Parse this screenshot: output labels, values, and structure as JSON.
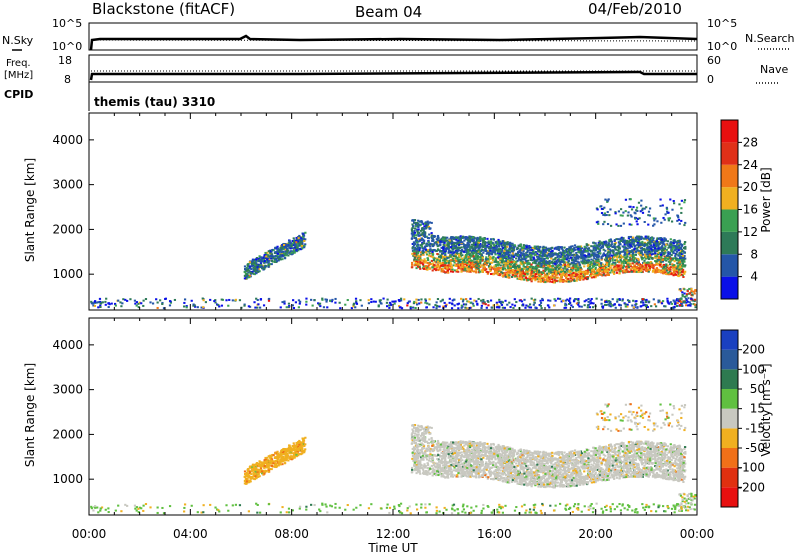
{
  "header": {
    "station": "Blackstone (fitACF)",
    "beam": "Beam 04",
    "date": "04/Feb/2010"
  },
  "panels": {
    "nsky": {
      "left_label": "N.Sky",
      "left_ticks": [
        "10^5",
        "10^0"
      ],
      "right_label": "N.Search",
      "right_ticks": [
        "10^5",
        "10^0"
      ]
    },
    "freq": {
      "left_label_line1": "Freq.",
      "left_label_line2": "[MHz]",
      "left_ticks": [
        "18",
        "8"
      ],
      "right_label": "Nave",
      "right_ticks": [
        "60",
        "0"
      ]
    },
    "cpid": {
      "label": "CPID",
      "text": "themis (tau) 3310"
    }
  },
  "colors": {
    "power": [
      "#0a10e8",
      "#2456a8",
      "#2e7a58",
      "#3aa052",
      "#f0b020",
      "#f07818",
      "#e03018",
      "#e81010"
    ],
    "velocity": [
      "#1a40c0",
      "#2a5a9a",
      "#2e7a50",
      "#60c040",
      "#c8c8c0",
      "#f0b020",
      "#f07018",
      "#e03010",
      "#e81010"
    ]
  },
  "chart_data": [
    {
      "type": "heatmap",
      "name": "power",
      "ylabel": "Slant Range [km]",
      "yticks": [
        "1000",
        "2000",
        "3000",
        "4000"
      ],
      "ylim": [
        200,
        4600
      ],
      "xlim": [
        0,
        24
      ],
      "colorbar_label": "Power [dB]",
      "colorbar_ticks": [
        "4",
        "8",
        "12",
        "16",
        "20",
        "24",
        "28"
      ]
    },
    {
      "type": "heatmap",
      "name": "velocity",
      "ylabel": "Slant Range [km]",
      "yticks": [
        "1000",
        "2000",
        "3000",
        "4000"
      ],
      "ylim": [
        200,
        4600
      ],
      "xlim": [
        0,
        24
      ],
      "xticks": [
        "00:00",
        "04:00",
        "08:00",
        "12:00",
        "16:00",
        "20:00",
        "00:00"
      ],
      "xlabel": "Time UT",
      "colorbar_label": "Velocity [m s⁻¹]",
      "colorbar_ticks": [
        "200",
        "100",
        "50",
        "15",
        "-15",
        "-50",
        "-100",
        "-200"
      ]
    }
  ]
}
